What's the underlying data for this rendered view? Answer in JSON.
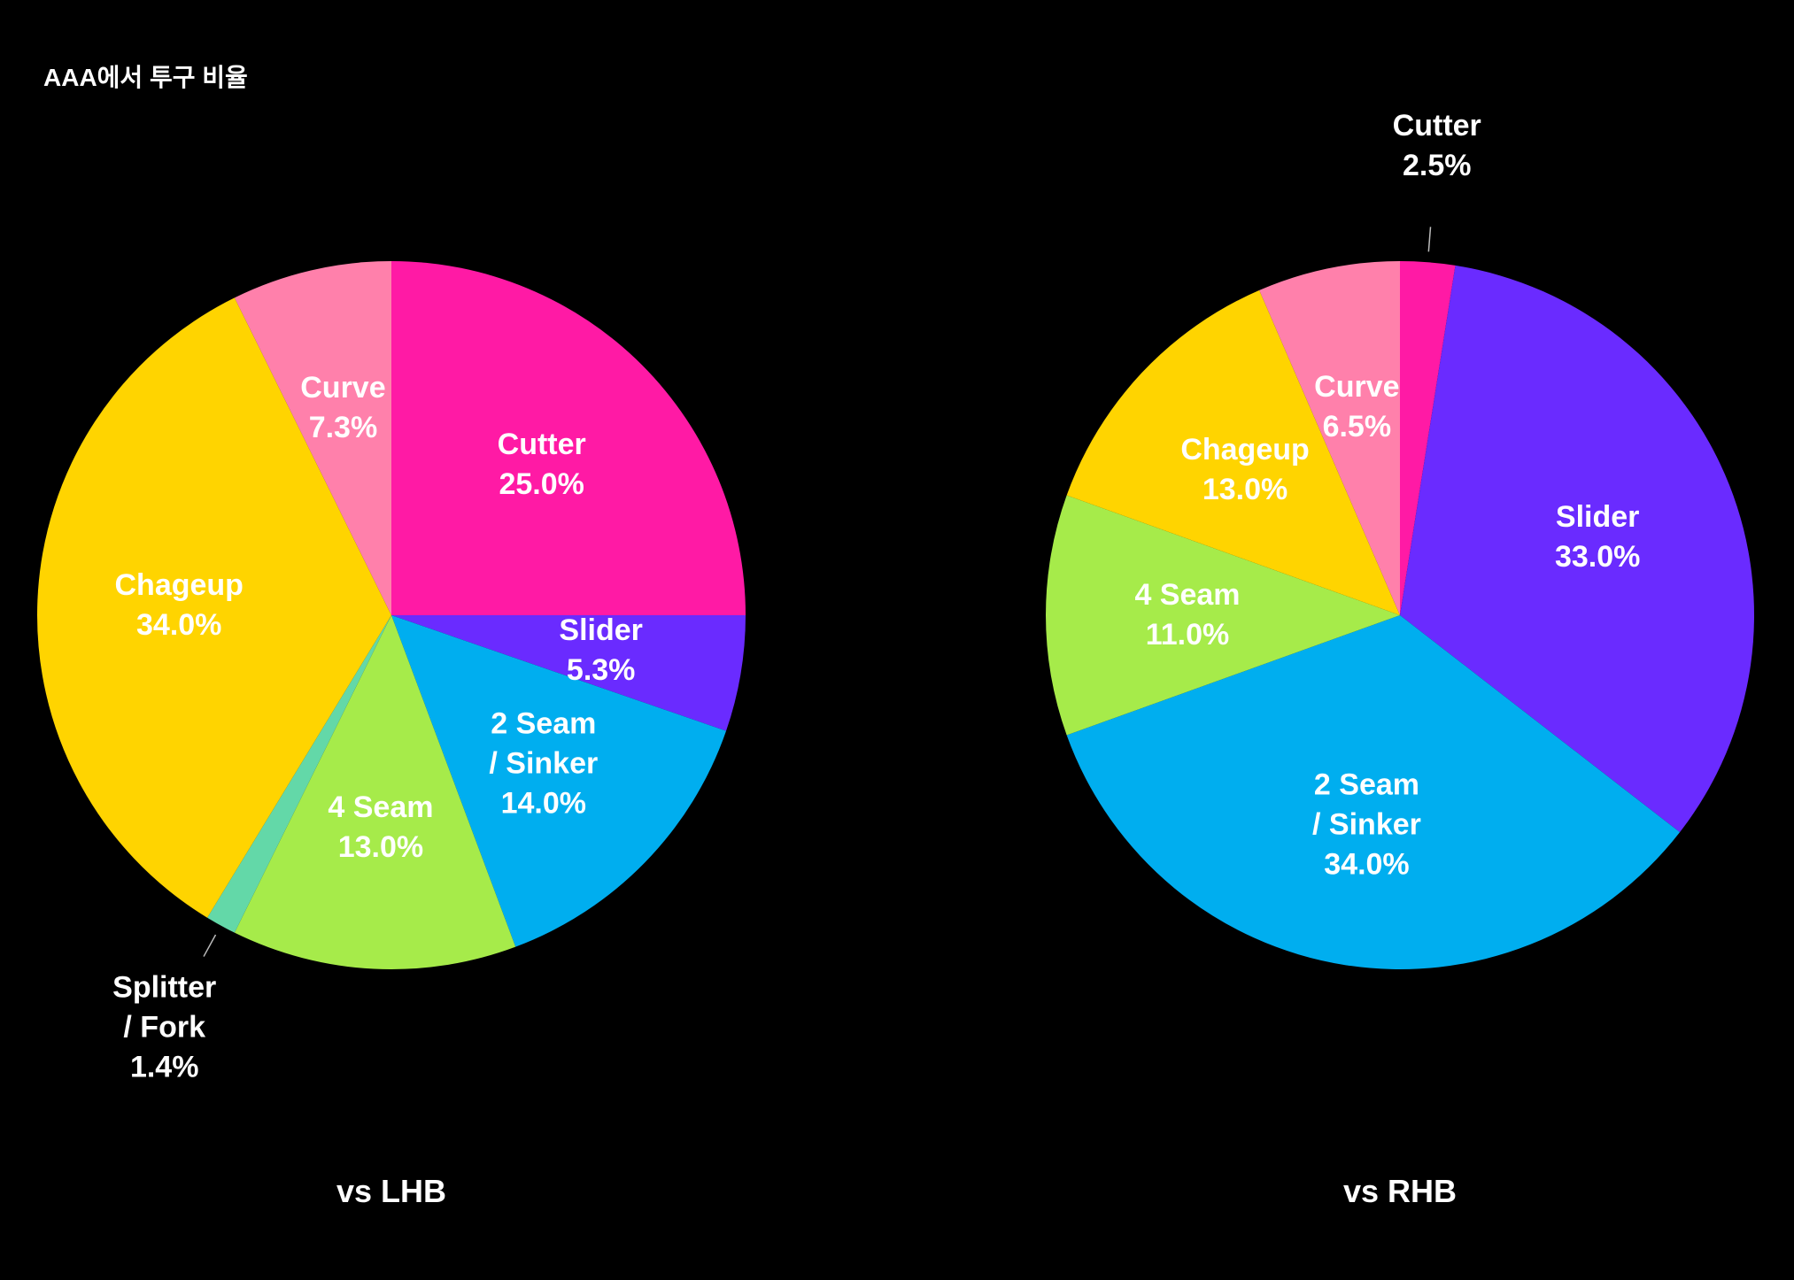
{
  "title": "AAA에서 투구 비율",
  "chart_data": [
    {
      "type": "pie",
      "title": "vs LHB",
      "categories": [
        "Cutter",
        "Slider",
        "2 Seam\n/ Sinker",
        "4 Seam",
        "Splitter\n/ Fork",
        "Chageup",
        "Curve"
      ],
      "values": [
        25.0,
        5.3,
        14.0,
        13.0,
        1.4,
        34.0,
        7.3
      ],
      "value_labels": [
        "25.0%",
        "5.3%",
        "14.0%",
        "13.0%",
        "1.4%",
        "34.0%",
        "7.3%"
      ],
      "colors": [
        "#ff1aa5",
        "#6a2bff",
        "#00aeef",
        "#a6eb4a",
        "#63d8a8",
        "#ffd400",
        "#ff80ab"
      ]
    },
    {
      "type": "pie",
      "title": "vs RHB",
      "categories": [
        "Cutter",
        "Slider",
        "2 Seam\n/ Sinker",
        "4 Seam",
        "Chageup",
        "Curve"
      ],
      "values": [
        2.5,
        33.0,
        34.0,
        11.0,
        13.0,
        6.5
      ],
      "value_labels": [
        "2.5%",
        "33.0%",
        "34.0%",
        "11.0%",
        "13.0%",
        "6.5%"
      ],
      "colors": [
        "#ff1aa5",
        "#6a2bff",
        "#00aeef",
        "#a6eb4a",
        "#ffd400",
        "#ff80ab"
      ]
    }
  ]
}
